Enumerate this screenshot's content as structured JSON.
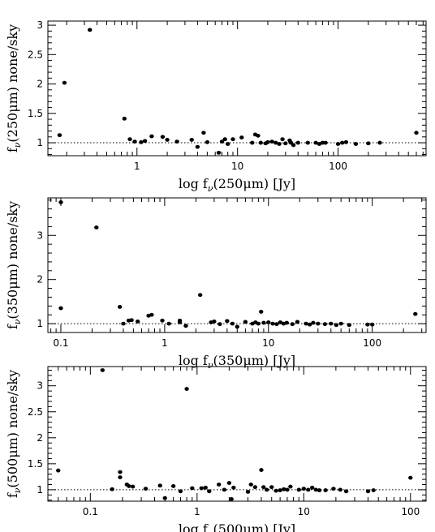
{
  "chart_data": [
    {
      "type": "scatter",
      "xscale": "log",
      "xlim": [
        0.13,
        750
      ],
      "ylim": [
        0.78,
        3.07
      ],
      "xticks": [
        1,
        10,
        100
      ],
      "xtick_labels": [
        "1",
        "10",
        "100"
      ],
      "yticks": [
        1,
        1.5,
        2,
        2.5,
        3
      ],
      "ytick_labels": [
        "1",
        "1.5",
        "2",
        "2.5",
        "3"
      ],
      "xlabel": {
        "pre": "log f",
        "sub": "ν",
        "post": "(250μm) [Jy]"
      },
      "ylabel": {
        "pre": "f",
        "sub": "ν",
        "post": "(250μm) none/sky"
      },
      "reference_line": 1,
      "grid": false,
      "points": [
        [
          0.17,
          1.13
        ],
        [
          0.19,
          2.02
        ],
        [
          0.34,
          2.92
        ],
        [
          0.75,
          1.41
        ],
        [
          0.85,
          1.06
        ],
        [
          0.95,
          1.02
        ],
        [
          1.1,
          1.01
        ],
        [
          1.2,
          1.03
        ],
        [
          1.4,
          1.11
        ],
        [
          1.8,
          1.1
        ],
        [
          2.0,
          1.05
        ],
        [
          2.5,
          1.02
        ],
        [
          3.5,
          1.05
        ],
        [
          4.0,
          0.93
        ],
        [
          4.6,
          1.17
        ],
        [
          5.0,
          1.01
        ],
        [
          6.5,
          0.83
        ],
        [
          7.0,
          1.02
        ],
        [
          7.5,
          1.06
        ],
        [
          8.0,
          0.98
        ],
        [
          9.0,
          1.06
        ],
        [
          11,
          1.09
        ],
        [
          14,
          1.0
        ],
        [
          15,
          1.14
        ],
        [
          16,
          1.12
        ],
        [
          17,
          1.0
        ],
        [
          19,
          0.99
        ],
        [
          20,
          1.01
        ],
        [
          22,
          1.02
        ],
        [
          24,
          1.0
        ],
        [
          26,
          0.98
        ],
        [
          28,
          1.06
        ],
        [
          30,
          0.99
        ],
        [
          33,
          1.04
        ],
        [
          34,
          1.0
        ],
        [
          36,
          0.96
        ],
        [
          40,
          1.0
        ],
        [
          50,
          1.0
        ],
        [
          60,
          1.0
        ],
        [
          65,
          0.98
        ],
        [
          70,
          1.0
        ],
        [
          75,
          1.0
        ],
        [
          100,
          0.98
        ],
        [
          110,
          1.0
        ],
        [
          120,
          1.01
        ],
        [
          150,
          0.98
        ],
        [
          200,
          0.99
        ],
        [
          260,
          1.0
        ],
        [
          600,
          1.17
        ]
      ]
    },
    {
      "type": "scatter",
      "xscale": "log",
      "xlim": [
        0.075,
        330
      ],
      "ylim": [
        0.8,
        3.85
      ],
      "xticks": [
        0.1,
        1,
        10,
        100
      ],
      "xtick_labels": [
        "0.1",
        "1",
        "10",
        "100"
      ],
      "yticks": [
        1,
        2,
        3
      ],
      "ytick_labels": [
        "1",
        "2",
        "3"
      ],
      "xlabel": {
        "pre": "log f",
        "sub": "ν",
        "post": "(350μm) [Jy]"
      },
      "ylabel": {
        "pre": "f",
        "sub": "ν",
        "post": "(350μm) none/sky"
      },
      "reference_line": 1,
      "grid": false,
      "points": [
        [
          0.1,
          3.75
        ],
        [
          0.1,
          1.35
        ],
        [
          0.22,
          3.18
        ],
        [
          0.37,
          1.38
        ],
        [
          0.4,
          1.0
        ],
        [
          0.45,
          1.07
        ],
        [
          0.48,
          1.08
        ],
        [
          0.55,
          1.05
        ],
        [
          0.7,
          1.18
        ],
        [
          0.75,
          1.2
        ],
        [
          0.95,
          1.07
        ],
        [
          1.1,
          1.0
        ],
        [
          1.4,
          1.03
        ],
        [
          1.4,
          1.07
        ],
        [
          1.6,
          0.95
        ],
        [
          2.2,
          1.65
        ],
        [
          2.8,
          1.03
        ],
        [
          3.0,
          1.05
        ],
        [
          3.4,
          0.99
        ],
        [
          4.0,
          1.06
        ],
        [
          4.5,
          1.0
        ],
        [
          5.0,
          0.93
        ],
        [
          6.0,
          1.04
        ],
        [
          7.0,
          1.0
        ],
        [
          7.5,
          1.03
        ],
        [
          8.0,
          1.0
        ],
        [
          8.5,
          1.27
        ],
        [
          9.0,
          1.02
        ],
        [
          10,
          1.03
        ],
        [
          11,
          1.0
        ],
        [
          12,
          0.99
        ],
        [
          13,
          1.03
        ],
        [
          14,
          1.0
        ],
        [
          15,
          1.02
        ],
        [
          17,
          0.99
        ],
        [
          19,
          1.04
        ],
        [
          23,
          1.0
        ],
        [
          25,
          0.98
        ],
        [
          27,
          1.02
        ],
        [
          30,
          1.0
        ],
        [
          35,
          0.99
        ],
        [
          40,
          1.0
        ],
        [
          45,
          0.97
        ],
        [
          50,
          1.0
        ],
        [
          60,
          0.97
        ],
        [
          90,
          0.98
        ],
        [
          100,
          0.98
        ],
        [
          260,
          1.22
        ]
      ]
    },
    {
      "type": "scatter",
      "xscale": "log",
      "xlim": [
        0.04,
        140
      ],
      "ylim": [
        0.78,
        3.37
      ],
      "xticks": [
        0.1,
        1,
        10,
        100
      ],
      "xtick_labels": [
        "0.1",
        "1",
        "10",
        "100"
      ],
      "yticks": [
        1,
        1.5,
        2,
        2.5,
        3
      ],
      "ytick_labels": [
        "1",
        "1.5",
        "2",
        "2.5",
        "3"
      ],
      "xlabel": {
        "pre": "log f",
        "sub": "ν",
        "post": "(500μm) [Jy]"
      },
      "ylabel": {
        "pre": "f",
        "sub": "ν",
        "post": "(500μm) none/sky"
      },
      "reference_line": 1,
      "grid": false,
      "points": [
        [
          0.05,
          1.37
        ],
        [
          0.13,
          3.3
        ],
        [
          0.16,
          1.01
        ],
        [
          0.19,
          1.34
        ],
        [
          0.19,
          1.24
        ],
        [
          0.22,
          1.1
        ],
        [
          0.23,
          1.07
        ],
        [
          0.25,
          1.06
        ],
        [
          0.33,
          1.02
        ],
        [
          0.45,
          1.08
        ],
        [
          0.5,
          0.84
        ],
        [
          0.6,
          1.07
        ],
        [
          0.7,
          0.97
        ],
        [
          0.8,
          2.94
        ],
        [
          0.9,
          1.03
        ],
        [
          1.1,
          1.03
        ],
        [
          1.2,
          1.04
        ],
        [
          1.3,
          0.97
        ],
        [
          1.6,
          1.1
        ],
        [
          1.8,
          1.0
        ],
        [
          2.0,
          1.13
        ],
        [
          2.1,
          0.82
        ],
        [
          2.2,
          1.04
        ],
        [
          3.0,
          0.96
        ],
        [
          3.2,
          1.1
        ],
        [
          3.5,
          1.05
        ],
        [
          4.0,
          1.38
        ],
        [
          4.2,
          1.05
        ],
        [
          4.5,
          1.0
        ],
        [
          5.0,
          1.05
        ],
        [
          5.5,
          0.98
        ],
        [
          6.0,
          0.99
        ],
        [
          6.5,
          1.01
        ],
        [
          7.0,
          1.0
        ],
        [
          7.5,
          1.06
        ],
        [
          9.0,
          1.0
        ],
        [
          10,
          1.02
        ],
        [
          11,
          1.0
        ],
        [
          12,
          1.04
        ],
        [
          13,
          1.0
        ],
        [
          14,
          0.99
        ],
        [
          16,
          0.99
        ],
        [
          19,
          1.02
        ],
        [
          22,
          1.0
        ],
        [
          25,
          0.97
        ],
        [
          40,
          0.97
        ],
        [
          45,
          0.99
        ],
        [
          100,
          1.23
        ]
      ]
    }
  ]
}
